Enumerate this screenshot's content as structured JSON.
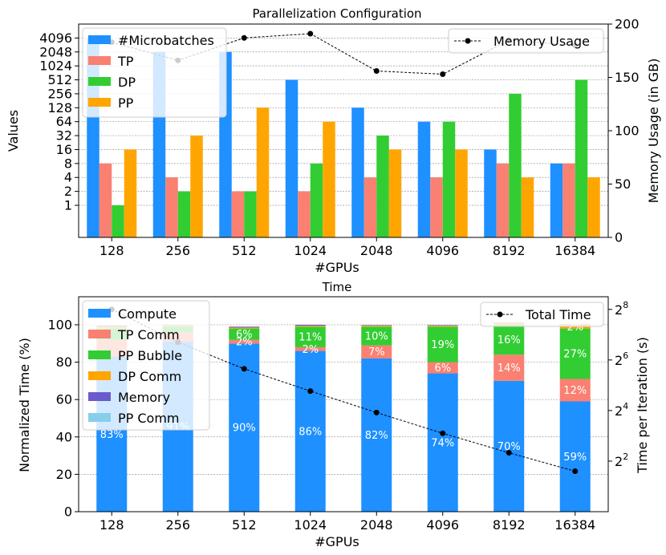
{
  "chart_data": [
    {
      "type": "bar",
      "title": "Parallelization Configuration",
      "xlabel": "#GPUs",
      "ylabel": "Values",
      "ylabel_right": "Memory Usage (in GB)",
      "yscale": "log2",
      "ylim_log2": [
        -2.3,
        13.0
      ],
      "y_ticks": [
        1,
        2,
        4,
        8,
        16,
        32,
        64,
        128,
        256,
        512,
        1024,
        2048,
        4096
      ],
      "y_ticks_right": [
        0,
        50,
        100,
        150,
        200
      ],
      "ylim_right": [
        0,
        200
      ],
      "categories": [
        "128",
        "256",
        "512",
        "1024",
        "2048",
        "4096",
        "8192",
        "16384"
      ],
      "series": [
        {
          "name": "#Microbatches",
          "color": "#1e90ff",
          "values": [
            4096,
            2048,
            2048,
            512,
            128,
            64,
            16,
            8
          ]
        },
        {
          "name": "TP",
          "color": "#fa8072",
          "values": [
            8,
            4,
            2,
            2,
            4,
            4,
            8,
            8
          ]
        },
        {
          "name": "DP",
          "color": "#32cd32",
          "values": [
            1,
            2,
            2,
            8,
            32,
            64,
            256,
            512
          ]
        },
        {
          "name": "PP",
          "color": "#ffa500",
          "values": [
            16,
            32,
            128,
            64,
            16,
            16,
            4,
            4
          ]
        }
      ],
      "line_series": {
        "name": "Memory Usage",
        "color": "#000000",
        "values": [
          183,
          166,
          187,
          191,
          156,
          153,
          185,
          180
        ]
      }
    },
    {
      "type": "bar",
      "stacked": true,
      "title": "Time",
      "xlabel": "#GPUs",
      "ylabel": "Normalized Time (%)",
      "ylabel_right": "Time per Iteration (s)",
      "ylim": [
        0,
        115
      ],
      "y_ticks": [
        0,
        20,
        40,
        60,
        80,
        100
      ],
      "y_ticks_right": [
        "2",
        "4",
        "6",
        "8"
      ],
      "y_ticks_right_base": "2",
      "ylim_right_log2": [
        0.0,
        8.5
      ],
      "categories": [
        "128",
        "256",
        "512",
        "1024",
        "2048",
        "4096",
        "8192",
        "16384"
      ],
      "series": [
        {
          "name": "Compute",
          "color": "#1e90ff",
          "values": [
            83,
            91,
            90,
            86,
            82,
            74,
            70,
            59
          ],
          "labels": [
            "83%",
            "91%",
            "90%",
            "86%",
            "82%",
            "74%",
            "70%",
            "59%"
          ]
        },
        {
          "name": "TP Comm",
          "color": "#fa8072",
          "values": [
            9,
            5,
            2,
            2,
            7,
            6,
            14,
            12
          ],
          "labels": [
            "",
            "",
            "2%",
            "2%",
            "7%",
            "6%",
            "14%",
            "12%"
          ]
        },
        {
          "name": "PP Bubble",
          "color": "#32cd32",
          "values": [
            6,
            3,
            6,
            11,
            10,
            19,
            16,
            27
          ],
          "labels": [
            "",
            "",
            "6%",
            "11%",
            "10%",
            "19%",
            "16%",
            "27%"
          ]
        },
        {
          "name": "DP Comm",
          "color": "#ffa500",
          "values": [
            1,
            0.5,
            0.5,
            0.5,
            0.5,
            0.5,
            1,
            2
          ],
          "labels": [
            "",
            "",
            "",
            "",
            "",
            "",
            "",
            "2%"
          ]
        },
        {
          "name": "Memory",
          "color": "#6a5acd",
          "values": [
            0.5,
            0.3,
            0.5,
            0.5,
            0.3,
            0.3,
            0.3,
            0.3
          ],
          "labels": [
            "",
            "",
            "",
            "",
            "",
            "",
            "",
            ""
          ]
        },
        {
          "name": "PP Comm",
          "color": "#87ceeb",
          "values": [
            0,
            0,
            0,
            0,
            0,
            0,
            0,
            0
          ],
          "labels": [
            "",
            "",
            "",
            "",
            "",
            "",
            "",
            ""
          ]
        }
      ],
      "line_series": {
        "name": "Total Time",
        "color": "#000000",
        "values_log2": [
          8.0,
          6.7,
          5.65,
          4.77,
          3.92,
          3.1,
          2.33,
          1.6
        ]
      }
    }
  ]
}
